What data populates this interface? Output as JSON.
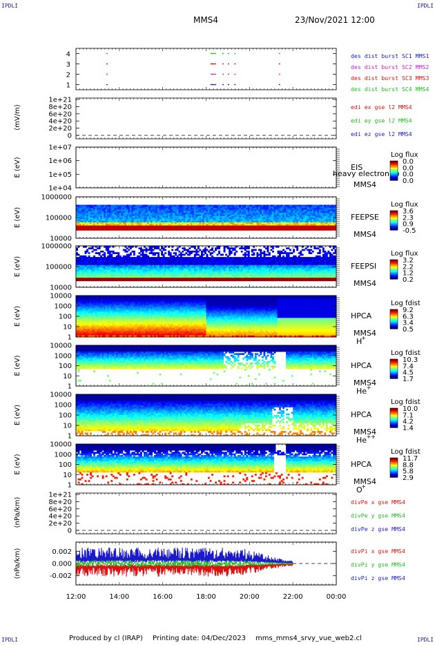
{
  "corner_labels": {
    "top_left": "IPDLI",
    "top_right": "IPDLI",
    "bottom_left": "IPDLI",
    "bottom_right": "IPDLI"
  },
  "header": {
    "spacecraft": "MMS4",
    "datetime": "23/Nov/2021 12:00"
  },
  "footer": {
    "produced_by": "Produced by cl (IRAP)",
    "printing_date": "Printing date: 04/Dec/2023",
    "script": "mms_mms4_srvy_vue_web2.cl"
  },
  "colors": {
    "sc1": "#1a1acc",
    "sc2": "#cc22cc",
    "sc3": "#dd1111",
    "sc4": "#22bb22",
    "x": "#dd1111",
    "y": "#22bb22",
    "z": "#1a1acc"
  },
  "chart_data": [
    {
      "id": "burst",
      "type": "scatter",
      "ylabel": "",
      "yticks": [
        "1",
        "2",
        "3",
        "4"
      ],
      "ylim": [
        0.5,
        4.5
      ],
      "legend": [
        {
          "text": "des dist burst SC1 MMS1",
          "color": "sc1"
        },
        {
          "text": "des dist burst SC2 MMS2",
          "color": "sc2"
        },
        {
          "text": "des dist burst SC3 MMS3",
          "color": "sc3"
        },
        {
          "text": "des dist burst SC4 MMS4",
          "color": "sc4"
        }
      ],
      "series": [
        {
          "name": "des dist burst SC1 MMS1",
          "y": 1,
          "color": "sc1",
          "x": [
            13.4,
            18.2,
            18.4,
            18.75,
            19.0,
            19.3,
            21.35
          ]
        },
        {
          "name": "des dist burst SC2 MMS2",
          "y": 2,
          "color": "sc2",
          "x": [
            13.4,
            18.2,
            18.4,
            18.75,
            19.0,
            19.3,
            21.35
          ]
        },
        {
          "name": "des dist burst SC3 MMS3",
          "y": 3,
          "color": "sc3",
          "x": [
            13.4,
            18.2,
            18.4,
            18.75,
            19.0,
            19.3,
            21.35
          ]
        },
        {
          "name": "des dist burst SC4 MMS4",
          "y": 4,
          "color": "sc4",
          "x": [
            13.4,
            18.2,
            18.4,
            18.75,
            19.0,
            19.3,
            21.35
          ]
        }
      ]
    },
    {
      "id": "edi",
      "type": "line",
      "ylabel": "(mV/m)",
      "yticks": [
        "1e+21",
        "8e+20",
        "6e+20",
        "4e+20",
        "2e+20",
        "0"
      ],
      "ylim": [
        0,
        1e+21
      ],
      "dashed_zero": true,
      "legend": [
        {
          "text": "edi ex gse l2 MMS4",
          "color": "x"
        },
        {
          "text": "edi ey gse l2 MMS4",
          "color": "y"
        },
        {
          "text": "edi ez gse l2 MMS4",
          "color": "z"
        }
      ]
    },
    {
      "id": "eis",
      "type": "heatmap",
      "ylabel": "E (eV)",
      "yticks": [
        "1e+07",
        "1e+06",
        "1e+05",
        "1e+04"
      ],
      "label1": "EIS",
      "label2": "MMS4",
      "overlay": "heavy electron to",
      "cbar_title": "Log flux",
      "cbar_ticks": [
        "0.0",
        "0.0",
        "0.0",
        "0.0"
      ],
      "empty": true
    },
    {
      "id": "feepse",
      "type": "heatmap",
      "ylabel": "E (eV)",
      "yticks": [
        "1000000",
        "100000",
        "10000"
      ],
      "label1": "FEEPSE",
      "label2": "MMS4",
      "cbar_title": "Log flux",
      "cbar_ticks": [
        "3.6",
        "2.3",
        "0.9",
        "-0.5"
      ]
    },
    {
      "id": "feepsi",
      "type": "heatmap",
      "ylabel": "E (eV)",
      "yticks": [
        "1000000",
        "100000",
        "10000"
      ],
      "label1": "FEEPSI",
      "label2": "MMS4",
      "cbar_title": "Log flux",
      "cbar_ticks": [
        "3.2",
        "2.2",
        "1.2",
        "0.2"
      ]
    },
    {
      "id": "hpca_h",
      "type": "heatmap",
      "ylabel": "E (eV)",
      "yticks": [
        "10000",
        "1000",
        "100",
        "10",
        "1"
      ],
      "label1": "HPCA",
      "label2": "MMS4",
      "species": "H",
      "charge": "+",
      "cbar_title": "Log fdist",
      "cbar_ticks": [
        "9.2",
        "6.3",
        "3.4",
        "0.5"
      ]
    },
    {
      "id": "hpca_he",
      "type": "heatmap",
      "ylabel": "E (eV)",
      "yticks": [
        "10000",
        "1000",
        "100",
        "10",
        "1"
      ],
      "label1": "HPCA",
      "label2": "MMS4",
      "species": "He",
      "charge": "+",
      "cbar_title": "Log fdist",
      "cbar_ticks": [
        "10.3",
        "7.4",
        "4.5",
        "1.7"
      ]
    },
    {
      "id": "hpca_hepp",
      "type": "heatmap",
      "ylabel": "E (eV)",
      "yticks": [
        "10000",
        "1000",
        "100",
        "10",
        "1"
      ],
      "label1": "HPCA",
      "label2": "MMS4",
      "species": "He",
      "charge": "++",
      "cbar_title": "Log fdist",
      "cbar_ticks": [
        "10.0",
        "7.1",
        "4.2",
        "1.4"
      ]
    },
    {
      "id": "hpca_o",
      "type": "heatmap",
      "ylabel": "E (eV)",
      "yticks": [
        "10000",
        "1000",
        "100",
        "10",
        "1"
      ],
      "label1": "HPCA",
      "label2": "MMS4",
      "species": "O",
      "charge": "+",
      "cbar_title": "Log fdist",
      "cbar_ticks": [
        "11.7",
        "8.8",
        "5.8",
        "2.9"
      ]
    },
    {
      "id": "divpe",
      "type": "line",
      "ylabel": "(nPa/km)",
      "yticks": [
        "1e+21",
        "8e+20",
        "6e+20",
        "4e+20",
        "2e+20",
        "0"
      ],
      "ylim": [
        0,
        1e+21
      ],
      "dashed_zero": true,
      "legend": [
        {
          "text": "divPe x gse MMS4",
          "color": "x"
        },
        {
          "text": "divPe y gse MMS4",
          "color": "y"
        },
        {
          "text": "divPe z gse MMS4",
          "color": "z"
        }
      ]
    },
    {
      "id": "divpi",
      "type": "line",
      "ylabel": "(nPa/km)",
      "yticks": [
        "0.002",
        "0.000",
        "-0.002"
      ],
      "ylim": [
        -0.0035,
        0.0035
      ],
      "dashed_zero": true,
      "legend": [
        {
          "text": "divPi x gse MMS4",
          "color": "x"
        },
        {
          "text": "divPi y gse MMS4",
          "color": "y"
        },
        {
          "text": "divPi z gse MMS4",
          "color": "z"
        }
      ],
      "data_end_hour": 22.0,
      "amplitude": {
        "x": 0.0018,
        "y": 0.0005,
        "z": 0.0022
      }
    }
  ],
  "time_axis": {
    "ticks": [
      "12:00",
      "14:00",
      "16:00",
      "18:00",
      "20:00",
      "22:00",
      "00:00"
    ],
    "range_hours": [
      12,
      24
    ]
  }
}
